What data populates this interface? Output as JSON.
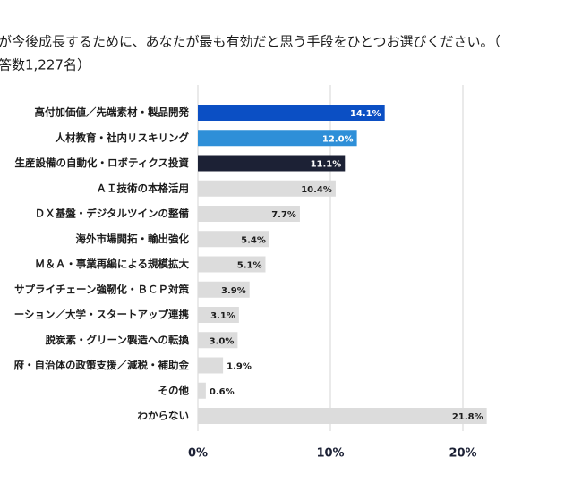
{
  "chart_data": {
    "type": "hbar",
    "title_lines": [
      "が今後成長するために、あなたが最も有効だと思う手段をひとつお選びください。（",
      "答数1,227名）"
    ],
    "categories": [
      "高付加価値／先端素材・製品開発",
      "人材教育・社内リスキリング",
      "生産設備の自動化・ロボティクス投資",
      "ＡＩ技術の本格活用",
      "ＤＸ基盤・デジタルツインの整備",
      "海外市場開拓・輸出強化",
      "Ｍ＆Ａ・事業再編による規模拡大",
      "サプライチェーン強靭化・ＢＣＰ対策",
      "ーション／大学・スタートアップ連携",
      "脱炭素・グリーン製造への転換",
      "府・自治体の政策支援／減税・補助金",
      "その他",
      "わからない"
    ],
    "values": [
      14.1,
      12.0,
      11.1,
      10.4,
      7.7,
      5.4,
      5.1,
      3.9,
      3.1,
      3.0,
      1.9,
      0.6,
      21.8
    ],
    "value_labels": [
      "14.1%",
      "12.0%",
      "11.1%",
      "10.4%",
      "7.7%",
      "5.4%",
      "5.1%",
      "3.9%",
      "3.1%",
      "3.0%",
      "1.9%",
      "0.6%",
      "21.8%"
    ],
    "colors": [
      "#0b4fc4",
      "#2e8fd8",
      "#1c2135",
      "#dcdcdc",
      "#dcdcdc",
      "#dcdcdc",
      "#dcdcdc",
      "#dcdcdc",
      "#dcdcdc",
      "#dcdcdc",
      "#dcdcdc",
      "#dcdcdc",
      "#dcdcdc"
    ],
    "xlim": [
      0,
      28
    ],
    "xticks": [
      {
        "value": 0,
        "label": "0%"
      },
      {
        "value": 10,
        "label": "10%"
      },
      {
        "value": 20,
        "label": "20%"
      }
    ],
    "grid": true
  }
}
